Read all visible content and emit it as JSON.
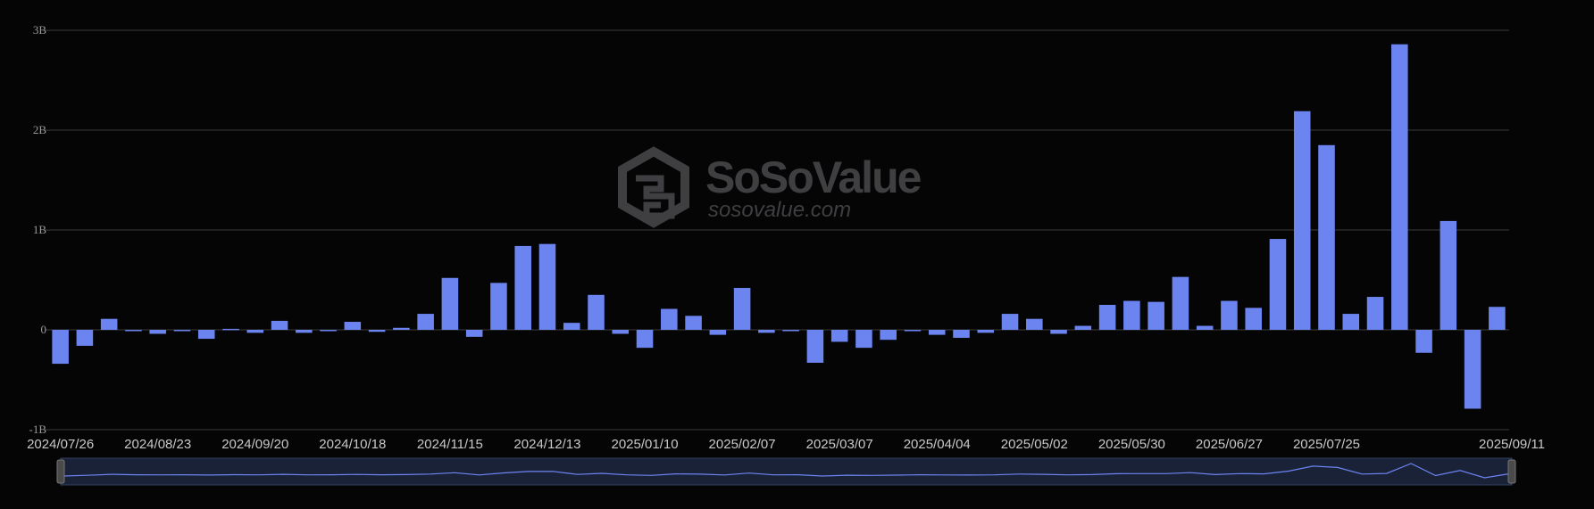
{
  "watermark": {
    "brand": "SoSoValue",
    "url": "sosovalue.com"
  },
  "chart_data": {
    "type": "bar",
    "ylim": [
      -1000000000,
      3000000000
    ],
    "yticks": [
      {
        "value": 3000000000,
        "label": "3B"
      },
      {
        "value": 2000000000,
        "label": "2B"
      },
      {
        "value": 1000000000,
        "label": "1B"
      },
      {
        "value": 0,
        "label": "0"
      },
      {
        "value": -1000000000,
        "label": "-1B"
      }
    ],
    "xtick_labels": [
      "2024/07/26",
      "2024/08/23",
      "2024/09/20",
      "2024/10/18",
      "2024/11/15",
      "2024/12/13",
      "2025/01/10",
      "2025/02/07",
      "2025/03/07",
      "2025/04/04",
      "2025/05/02",
      "2025/05/30",
      "2025/06/27",
      "2025/07/25",
      "2025/09/11"
    ],
    "xtick_index": [
      0,
      4,
      8,
      12,
      16,
      20,
      24,
      28,
      32,
      36,
      40,
      44,
      48,
      52,
      59
    ],
    "categories": [
      "2024/07/26",
      "2024/08/02",
      "2024/08/09",
      "2024/08/16",
      "2024/08/23",
      "2024/08/30",
      "2024/09/06",
      "2024/09/13",
      "2024/09/20",
      "2024/09/27",
      "2024/10/04",
      "2024/10/11",
      "2024/10/18",
      "2024/10/25",
      "2024/11/01",
      "2024/11/08",
      "2024/11/15",
      "2024/11/22",
      "2024/11/29",
      "2024/12/06",
      "2024/12/13",
      "2024/12/20",
      "2024/12/27",
      "2025/01/03",
      "2025/01/10",
      "2025/01/17",
      "2025/01/24",
      "2025/01/31",
      "2025/02/07",
      "2025/02/14",
      "2025/02/21",
      "2025/02/28",
      "2025/03/07",
      "2025/03/14",
      "2025/03/21",
      "2025/03/28",
      "2025/04/04",
      "2025/04/11",
      "2025/04/18",
      "2025/04/25",
      "2025/05/02",
      "2025/05/09",
      "2025/05/16",
      "2025/05/23",
      "2025/05/30",
      "2025/06/06",
      "2025/06/13",
      "2025/06/20",
      "2025/06/27",
      "2025/07/04",
      "2025/07/11",
      "2025/07/18",
      "2025/07/25",
      "2025/08/01",
      "2025/08/08",
      "2025/08/15",
      "2025/08/22",
      "2025/08/29",
      "2025/09/05",
      "2025/09/11"
    ],
    "values": [
      -340000000,
      -160000000,
      110000000,
      -10000000,
      -40000000,
      -10000000,
      -90000000,
      10000000,
      -30000000,
      90000000,
      -30000000,
      -10000000,
      80000000,
      -20000000,
      20000000,
      160000000,
      520000000,
      -70000000,
      470000000,
      840000000,
      860000000,
      70000000,
      350000000,
      -40000000,
      -180000000,
      210000000,
      140000000,
      -50000000,
      420000000,
      -30000000,
      -10000000,
      -330000000,
      -120000000,
      -180000000,
      -100000000,
      -10000000,
      -50000000,
      -80000000,
      -30000000,
      160000000,
      110000000,
      -40000000,
      40000000,
      250000000,
      290000000,
      280000000,
      530000000,
      40000000,
      290000000,
      220000000,
      910000000,
      2190000000,
      1850000000,
      160000000,
      330000000,
      2860000000,
      -230000000,
      1090000000,
      -790000000,
      230000000
    ]
  }
}
